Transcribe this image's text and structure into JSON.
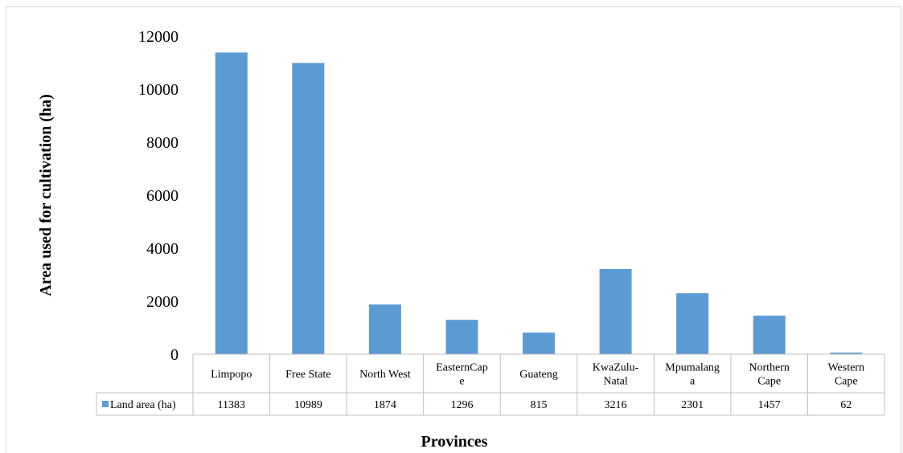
{
  "chart_data": {
    "type": "bar",
    "categories": [
      [
        "Limpopo"
      ],
      [
        "Free State"
      ],
      [
        "North West"
      ],
      [
        "EasternCap",
        "e"
      ],
      [
        "Guateng"
      ],
      [
        "KwaZulu-",
        "Natal"
      ],
      [
        "Mpumalang",
        "a"
      ],
      [
        "Northern",
        "Cape"
      ],
      [
        "Western",
        "Cape"
      ]
    ],
    "series": [
      {
        "name": "Land area (ha)",
        "values": [
          11383,
          10989,
          1874,
          1296,
          815,
          3216,
          2301,
          1457,
          62
        ],
        "color": "#5b9bd5"
      }
    ],
    "ylabel": "Area used for cultivation (ha)",
    "xlabel": "Provinces",
    "ylim": [
      0,
      12000
    ],
    "yticks": [
      "0",
      "2000",
      "4000",
      "6000",
      "8000",
      "10000",
      "12000"
    ],
    "grid": false,
    "legend": "data-table"
  }
}
